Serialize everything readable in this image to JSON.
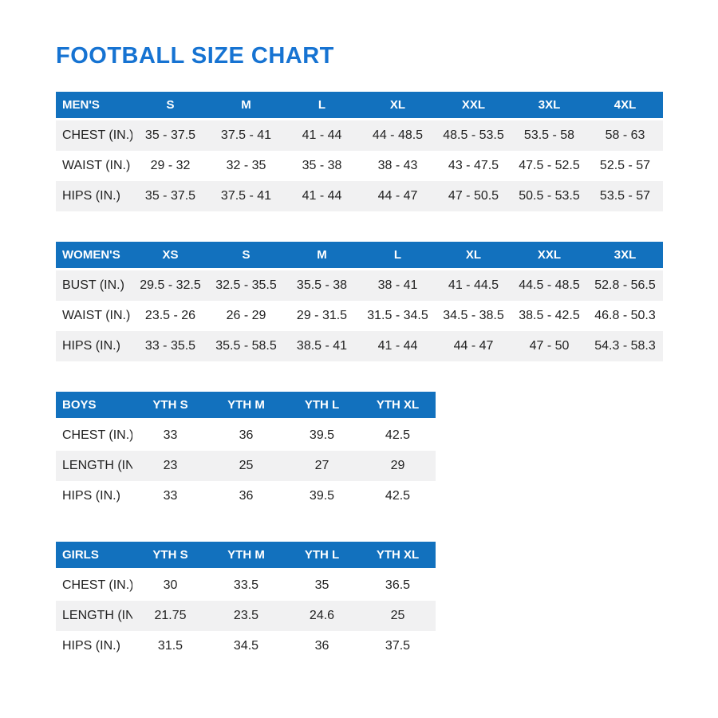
{
  "page": {
    "title": "FOOTBALL SIZE CHART"
  },
  "colors": {
    "title_blue": "#1673D2",
    "header_blue": "#1271BE",
    "row_alt_gray": "#f1f1f2",
    "body_text": "#222222"
  },
  "tables": [
    {
      "id": "mens",
      "group_label": "MEN'S",
      "columns": [
        "S",
        "M",
        "L",
        "XL",
        "XXL",
        "3XL",
        "4XL"
      ],
      "rows": [
        {
          "label": "CHEST (IN.)",
          "values": [
            "35 - 37.5",
            "37.5 - 41",
            "41 - 44",
            "44 - 48.5",
            "48.5 - 53.5",
            "53.5 - 58",
            "58 - 63"
          ]
        },
        {
          "label": "WAIST (IN.)",
          "values": [
            "29 - 32",
            "32 - 35",
            "35 - 38",
            "38 - 43",
            "43 - 47.5",
            "47.5 - 52.5",
            "52.5 - 57"
          ]
        },
        {
          "label": "HIPS (IN.)",
          "values": [
            "35 - 37.5",
            "37.5 - 41",
            "41 - 44",
            "44 - 47",
            "47 - 50.5",
            "50.5 - 53.5",
            "53.5 - 57"
          ]
        }
      ],
      "gray_rows": [
        0,
        2
      ]
    },
    {
      "id": "womens",
      "group_label": "WOMEN'S",
      "columns": [
        "XS",
        "S",
        "M",
        "L",
        "XL",
        "XXL",
        "3XL"
      ],
      "rows": [
        {
          "label": "BUST (IN.)",
          "values": [
            "29.5 - 32.5",
            "32.5 - 35.5",
            "35.5 - 38",
            "38 - 41",
            "41 - 44.5",
            "44.5 - 48.5",
            "52.8 - 56.5"
          ]
        },
        {
          "label": "WAIST (IN.)",
          "values": [
            "23.5 - 26",
            "26 - 29",
            "29 - 31.5",
            "31.5 - 34.5",
            "34.5 - 38.5",
            "38.5 - 42.5",
            "46.8 - 50.3"
          ]
        },
        {
          "label": "HIPS (IN.)",
          "values": [
            "33 - 35.5",
            "35.5 - 58.5",
            "38.5 - 41",
            "41 - 44",
            "44 - 47",
            "47 - 50",
            "54.3 - 58.3"
          ]
        }
      ],
      "gray_rows": [
        0,
        2
      ]
    },
    {
      "id": "boys",
      "group_label": "BOYS",
      "columns": [
        "YTH S",
        "YTH M",
        "YTH L",
        "YTH XL"
      ],
      "rows": [
        {
          "label": "CHEST (IN.)",
          "values": [
            "33",
            "36",
            "39.5",
            "42.5"
          ]
        },
        {
          "label": "LENGTH (IN.)",
          "values": [
            "23",
            "25",
            "27",
            "29"
          ]
        },
        {
          "label": "HIPS (IN.)",
          "values": [
            "33",
            "36",
            "39.5",
            "42.5"
          ]
        }
      ],
      "gray_rows": [
        1
      ]
    },
    {
      "id": "girls",
      "group_label": "GIRLS",
      "columns": [
        "YTH S",
        "YTH M",
        "YTH L",
        "YTH XL"
      ],
      "rows": [
        {
          "label": "CHEST (IN.)",
          "values": [
            "30",
            "33.5",
            "35",
            "36.5"
          ]
        },
        {
          "label": "LENGTH (IN.)",
          "values": [
            "21.75",
            "23.5",
            "24.6",
            "25"
          ]
        },
        {
          "label": "HIPS (IN.)",
          "values": [
            "31.5",
            "34.5",
            "36",
            "37.5"
          ]
        }
      ],
      "gray_rows": [
        1
      ]
    }
  ]
}
